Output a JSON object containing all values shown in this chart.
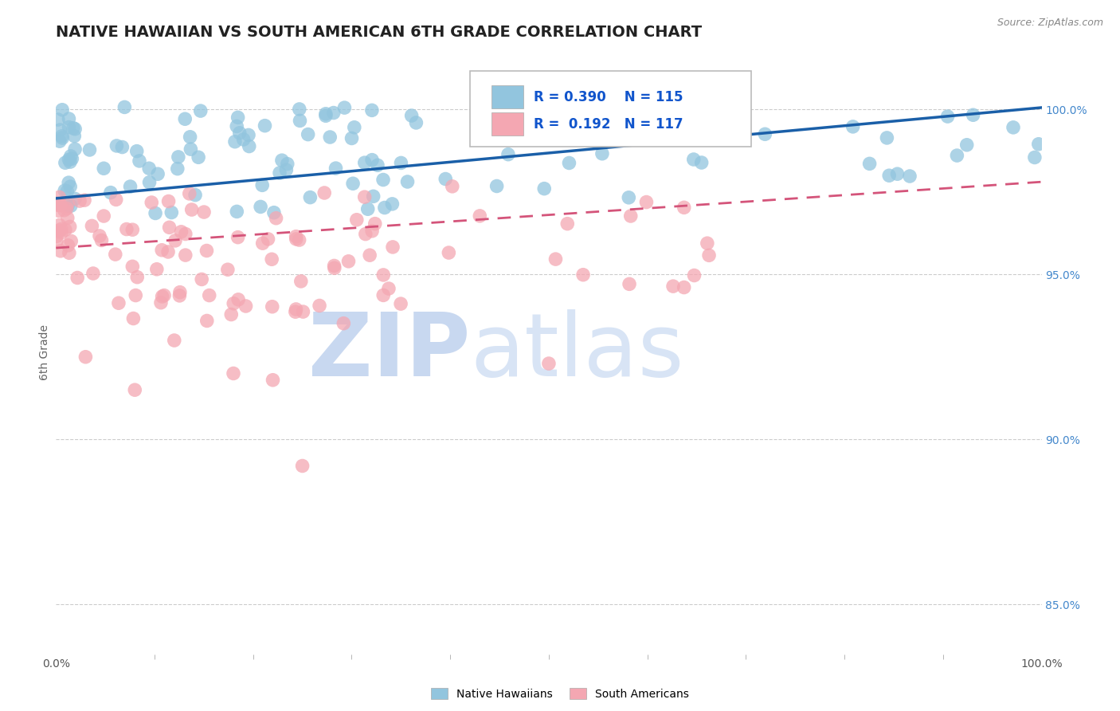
{
  "title": "NATIVE HAWAIIAN VS SOUTH AMERICAN 6TH GRADE CORRELATION CHART",
  "source": "Source: ZipAtlas.com",
  "ylabel": "6th Grade",
  "xlim": [
    0.0,
    100.0
  ],
  "ylim": [
    83.5,
    101.8
  ],
  "ytick_labels_right": [
    "85.0%",
    "90.0%",
    "95.0%",
    "100.0%"
  ],
  "ytick_values_right": [
    85.0,
    90.0,
    95.0,
    100.0
  ],
  "legend_r1": "R = 0.390",
  "legend_n1": "N = 115",
  "legend_r2": "R =  0.192",
  "legend_n2": "N = 117",
  "blue_color": "#92c5de",
  "pink_color": "#f4a7b2",
  "blue_line_color": "#1a5fa8",
  "pink_line_color": "#d4547a",
  "background_color": "#ffffff",
  "grid_color": "#cccccc",
  "title_fontsize": 14,
  "axis_label_fontsize": 10,
  "tick_fontsize": 10,
  "legend_fontsize": 12,
  "watermark_color": "#d0ddf0",
  "watermark_fontsize": 80,
  "blue_trend_y_start": 97.3,
  "blue_trend_y_end": 100.05,
  "pink_trend_y_start": 95.8,
  "pink_trend_y_end": 97.8
}
